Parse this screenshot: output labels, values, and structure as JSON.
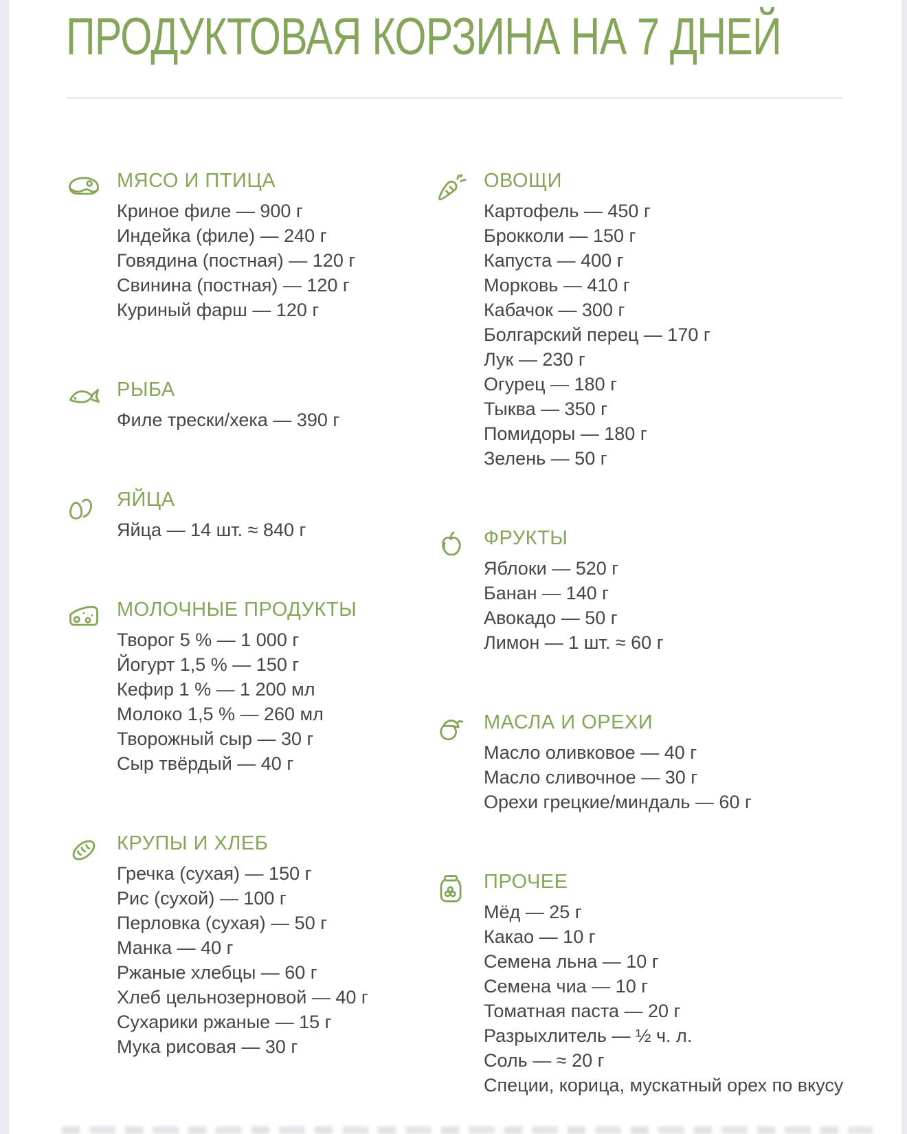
{
  "page": {
    "title": "ПРОДУКТОВАЯ КОРЗИНА НА 7 ДНЕЙ",
    "accent_color": "#85a65a",
    "text_color": "#43464a",
    "divider_color": "#ebebee",
    "edge_color": "#e9e9ef"
  },
  "columns": {
    "left": [
      {
        "id": "meat",
        "icon": "steak-icon",
        "title": "МЯСО И ПТИЦА",
        "items": [
          "Криное филе — 900 г",
          "Индейка (филе) — 240 г",
          "Говядина (постная) — 120 г",
          "Свинина (постная) — 120 г",
          "Куриный фарш — 120 г"
        ]
      },
      {
        "id": "fish",
        "icon": "fish-icon",
        "title": "РЫБА",
        "items": [
          "Филе трески/хека — 390 г"
        ]
      },
      {
        "id": "eggs",
        "icon": "eggs-icon",
        "title": "ЯЙЦА",
        "items": [
          "Яйца — 14 шт. ≈ 840 г"
        ]
      },
      {
        "id": "dairy",
        "icon": "cheese-icon",
        "title": "МОЛОЧНЫЕ ПРОДУКТЫ",
        "items": [
          "Творог 5 % — 1 000 г",
          "Йогурт 1,5 % — 150 г",
          "Кефир 1 % — 1 200 мл",
          "Молоко 1,5 % — 260 мл",
          "Творожный сыр — 30 г",
          "Сыр твёрдый — 40 г"
        ]
      },
      {
        "id": "grains-bread",
        "icon": "bread-icon",
        "title": "КРУПЫ И ХЛЕБ",
        "items": [
          "Гречка (сухая) — 150 г",
          "Рис (сухой) — 100 г",
          "Перловка (сухая) — 50 г",
          "Манка — 40 г",
          "Ржаные хлебцы — 60 г",
          "Хлеб цельнозерновой — 40 г",
          "Сухарики ржаные — 15 г",
          "Мука рисовая — 30 г"
        ]
      }
    ],
    "right": [
      {
        "id": "vegetables",
        "icon": "carrot-icon",
        "title": "ОВОЩИ",
        "items": [
          "Картофель — 450 г",
          "Брокколи — 150 г",
          "Капуста — 400 г",
          "Морковь — 410 г",
          "Кабачок — 300 г",
          "Болгарский перец — 170 г",
          "Лук — 230 г",
          "Огурец — 180 г",
          "Тыква — 350 г",
          "Помидоры — 180 г",
          "Зелень — 50 г"
        ]
      },
      {
        "id": "fruits",
        "icon": "apple-icon",
        "title": "ФРУКТЫ",
        "items": [
          "Яблоки — 520 г",
          "Банан — 140 г",
          "Авокадо — 50 г",
          "Лимон — 1 шт. ≈ 60 г"
        ]
      },
      {
        "id": "oils-nuts",
        "icon": "acorn-icon",
        "title": "МАСЛА И ОРЕХИ",
        "items": [
          "Масло оливковое — 40 г",
          "Масло сливочное — 30 г",
          "Орехи грецкие/миндаль — 60 г"
        ]
      },
      {
        "id": "other",
        "icon": "jar-icon",
        "title": "ПРОЧЕЕ",
        "items": [
          "Мёд — 25 г",
          "Какао — 10 г",
          "Семена льна — 10 г",
          "Семена чиа — 10 г",
          "Томатная паста — 20 г",
          "Разрыхлитель — ½ ч. л.",
          "Соль — ≈ 20 г",
          "Специи, корица, мускатный орех по вкусу"
        ]
      }
    ]
  }
}
